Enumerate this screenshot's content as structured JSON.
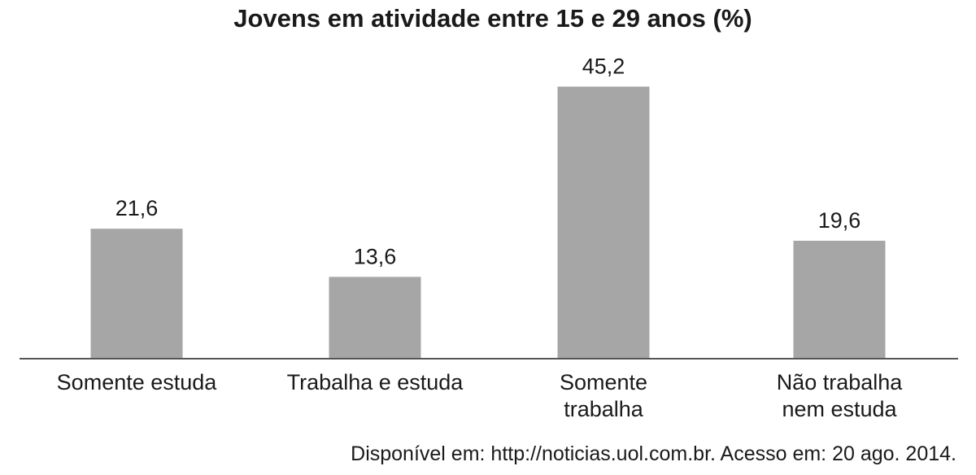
{
  "chart_data": {
    "type": "bar",
    "title": "Jovens em atividade entre 15 e 29 anos (%)",
    "categories": [
      [
        "Somente estuda"
      ],
      [
        "Trabalha e estuda"
      ],
      [
        "Somente",
        "trabalha"
      ],
      [
        "Não trabalha",
        "nem estuda"
      ]
    ],
    "values": [
      21.6,
      13.6,
      45.2,
      19.6
    ],
    "value_labels": [
      "21,6",
      "13,6",
      "45,2",
      "19,6"
    ],
    "ylim": [
      0,
      50
    ],
    "bar_color": "#a6a6a6",
    "axis_color": "#555555",
    "grid": false,
    "legend": "none"
  },
  "source": "Disponível em: http://noticias.uol.com.br. Acesso em: 20 ago. 2014."
}
